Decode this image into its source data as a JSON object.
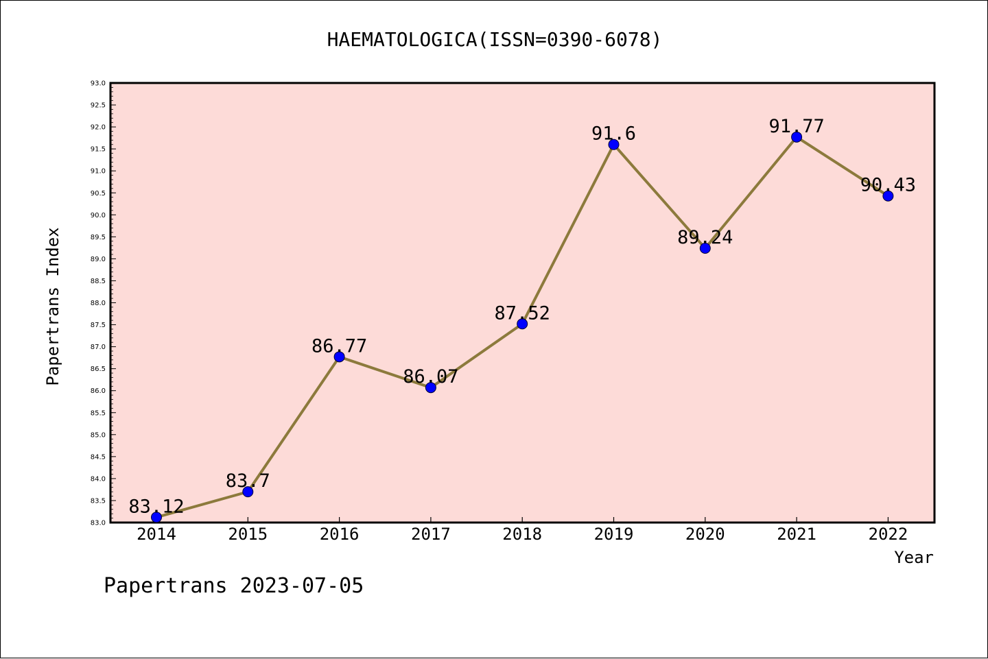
{
  "chart_data": {
    "type": "line",
    "title": "HAEMATOLOGICA(ISSN=0390-6078)",
    "xlabel": "Year",
    "ylabel": "Papertrans Index",
    "categories": [
      "2014",
      "2015",
      "2016",
      "2017",
      "2018",
      "2019",
      "2020",
      "2021",
      "2022"
    ],
    "values": [
      83.12,
      83.7,
      86.77,
      86.07,
      87.52,
      91.6,
      89.24,
      91.77,
      90.43
    ],
    "data_labels": [
      "83.12",
      "83.7",
      "86.77",
      "86.07",
      "87.52",
      "91.6",
      "89.24",
      "91.77",
      "90.43"
    ],
    "ylim": [
      83.0,
      93.0
    ],
    "yticks": [
      "83.0",
      "83.5",
      "84.0",
      "84.5",
      "85.0",
      "85.5",
      "86.0",
      "86.5",
      "87.0",
      "87.5",
      "88.0",
      "88.5",
      "89.0",
      "89.5",
      "90.0",
      "90.5",
      "91.0",
      "91.5",
      "92.0",
      "92.5",
      "93.0"
    ],
    "grid": false,
    "line_color": "#8c7a3c",
    "marker_color": "#0000ff",
    "plot_background": "#fddbd8",
    "footer": "Papertrans 2023-07-05"
  }
}
